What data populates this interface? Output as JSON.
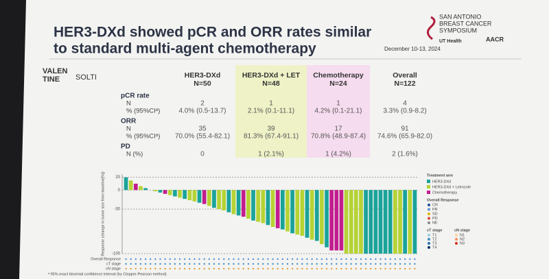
{
  "header": {
    "title": [
      "HER3-DXd showed pCR and ORR rates similar",
      "to standard multi-agent chemotherapy"
    ],
    "conference": [
      "SAN ANTONIO",
      "BREAST CANCER",
      "SYMPOSIUM"
    ],
    "date": "December 10-13, 2024",
    "logos": [
      "UT Health",
      "AACR"
    ]
  },
  "brand": {
    "valentine": [
      "VALEN",
      "TINE"
    ],
    "solti": "SOLTI"
  },
  "table": {
    "columns": [
      {
        "name": "HER3-DXd",
        "n": "N=50",
        "color": "#2a9d8f"
      },
      {
        "name": "HER3-DXd + LET",
        "n": "N=48",
        "color": "#6b8e23"
      },
      {
        "name": "Chemotherapy",
        "n": "N=24",
        "color": "#b4338f"
      },
      {
        "name": "Overall",
        "n": "N=122",
        "color": "#777777"
      }
    ],
    "sections": [
      {
        "label": "pCR rate",
        "rows": [
          {
            "label": "N",
            "cells": [
              "2",
              "1",
              "1",
              "4"
            ]
          },
          {
            "label": "% (95%CIᵃ)",
            "cells": [
              "4.0% (0.5-13.7)",
              "2.1% (0.1-11.1)",
              "4.2% (0.1-21.1)",
              "3.3% (0.9-8.2)"
            ]
          }
        ]
      },
      {
        "label": "ORR",
        "rows": [
          {
            "label": "N",
            "cells": [
              "35",
              "39",
              "17",
              "91"
            ]
          },
          {
            "label": "% (95%CIᵃ)",
            "cells": [
              "70.0% (55.4-82.1)",
              "81.3% (67.4-91.1)",
              "70.8% (48.9-87.4)",
              "74.6% (65.9-82.0)"
            ]
          }
        ]
      },
      {
        "label": "PD",
        "rows": [
          {
            "label": "N (%)",
            "cells": [
              "0",
              "1 (2.1%)",
              "1 (4.2%)",
              "2 (1.6%)"
            ]
          }
        ]
      }
    ]
  },
  "chart_data": {
    "type": "bar",
    "y_label": "Response (change in tumor size from baseline[%])",
    "ylim": [
      -100,
      25
    ],
    "yticks": [
      20,
      0,
      -30,
      -100
    ],
    "legend_title": "Treatment arm",
    "series": [
      {
        "name": "HER3-DXd",
        "color": "#1aa39a",
        "values": [
          20,
          null,
          null,
          null,
          3,
          null,
          null,
          -4,
          null,
          null,
          -10,
          null,
          -14,
          null,
          null,
          -20,
          null,
          null,
          -28,
          null,
          null,
          -35,
          null,
          -40,
          null,
          null,
          -48,
          null,
          null,
          -55,
          null,
          null,
          -62,
          null,
          -68,
          null,
          null,
          -75,
          null,
          -80,
          null,
          -90,
          null,
          null,
          null,
          null,
          null,
          null,
          null,
          -100,
          -100,
          -100,
          -100,
          -100,
          -100,
          null,
          null,
          -100,
          null,
          -100
        ]
      },
      {
        "name": "HER3-DXd + Letrozole",
        "color": "#b5d334",
        "values": [
          null,
          15,
          null,
          6,
          null,
          0,
          -2,
          null,
          null,
          -8,
          null,
          -12,
          null,
          -16,
          -18,
          null,
          null,
          -25,
          null,
          -30,
          -32,
          null,
          -38,
          null,
          null,
          -45,
          null,
          -50,
          -52,
          null,
          -58,
          null,
          null,
          -65,
          null,
          -70,
          -72,
          null,
          -78,
          null,
          -85,
          null,
          null,
          null,
          null,
          -100,
          -100,
          -100,
          -100,
          null,
          null,
          null,
          null,
          null,
          null,
          -100,
          -100,
          null,
          -100,
          null
        ]
      },
      {
        "name": "Chemotherapy",
        "color": "#c21d8f",
        "values": [
          null,
          null,
          10,
          null,
          null,
          null,
          null,
          null,
          -6,
          null,
          null,
          null,
          null,
          null,
          null,
          null,
          -22,
          null,
          null,
          null,
          null,
          null,
          null,
          null,
          -42,
          null,
          null,
          null,
          null,
          null,
          null,
          -60,
          null,
          null,
          null,
          null,
          null,
          null,
          null,
          null,
          null,
          null,
          -95,
          -95,
          -95,
          null,
          null,
          null,
          null,
          null,
          null,
          null,
          null,
          null,
          null,
          null,
          null,
          null,
          null,
          null
        ]
      }
    ],
    "response_legend": {
      "title": "Overall Response",
      "items": [
        {
          "name": "CR",
          "color": "#1f4e9c"
        },
        {
          "name": "PR",
          "color": "#5a8fd6"
        },
        {
          "name": "SD",
          "color": "#e0b000"
        },
        {
          "name": "PD",
          "color": "#d9442e"
        },
        {
          "name": "NE",
          "color": "#888888"
        }
      ]
    },
    "stage_legend": {
      "ct_title": "cT stage",
      "ct": [
        "T1",
        "T2",
        "T3",
        "T4"
      ],
      "cn_title": "cN stage",
      "cn": [
        "N1",
        "N2",
        "N3"
      ]
    },
    "track_labels": [
      "Overall Response",
      "cT stage",
      "cN stage"
    ],
    "footnote": "ᵃ 95% exact binomial confidence interval (by Clopper-Pearson method)"
  }
}
